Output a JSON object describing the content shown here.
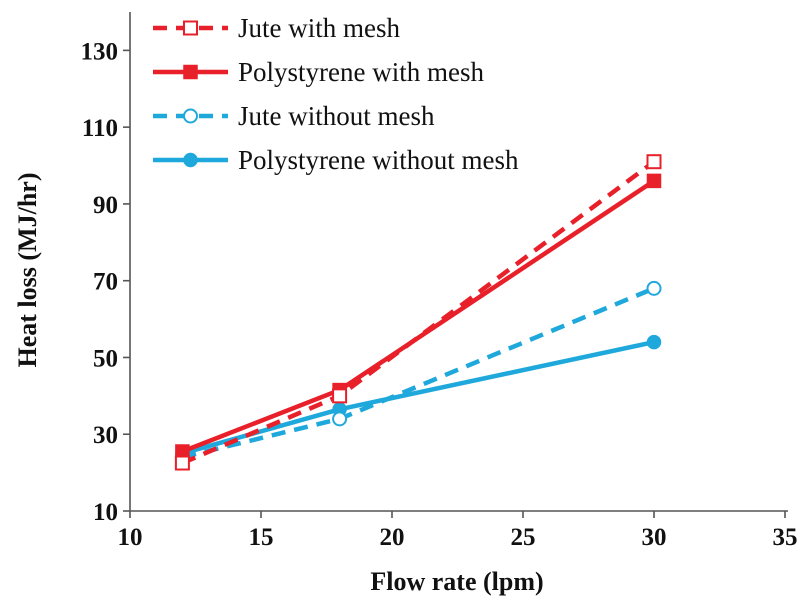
{
  "chart_data": {
    "type": "line",
    "title": "",
    "xlabel": "Flow rate (lpm)",
    "ylabel": "Heat loss (MJ/hr)",
    "xlim": [
      10,
      35
    ],
    "ylim": [
      10,
      140
    ],
    "xticks": [
      10,
      15,
      20,
      25,
      30,
      35
    ],
    "yticks": [
      10,
      30,
      50,
      70,
      90,
      110,
      130
    ],
    "grid": false,
    "legend_position": "top-left",
    "x": [
      12,
      18,
      30
    ],
    "series": [
      {
        "name": "Jute with mesh",
        "values": [
          22.5,
          40,
          101
        ],
        "color": "#e8202a",
        "dash": "dashed",
        "marker": "open-square"
      },
      {
        "name": "Polystyrene with mesh",
        "values": [
          25.5,
          41.5,
          96
        ],
        "color": "#e8202a",
        "dash": "solid",
        "marker": "filled-square"
      },
      {
        "name": "Jute without mesh",
        "values": [
          24,
          34,
          68
        ],
        "color": "#1fa8dc",
        "dash": "dashed",
        "marker": "open-circle"
      },
      {
        "name": "Polystyrene without mesh",
        "values": [
          25,
          36.5,
          54
        ],
        "color": "#1fa8dc",
        "dash": "solid",
        "marker": "filled-circle"
      }
    ]
  }
}
